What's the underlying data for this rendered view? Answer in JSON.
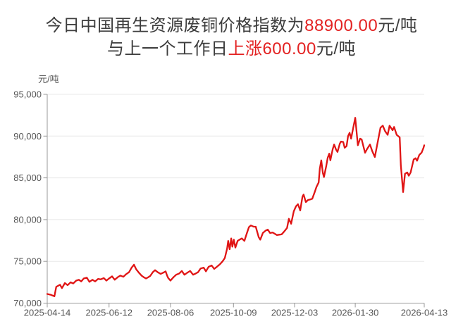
{
  "title": {
    "line1_prefix": "今日中国再生资源废铜价格指数为",
    "line1_value": "88900.00",
    "line1_suffix": "元/吨",
    "line2_prefix": "与上一个工作日",
    "line2_value": "上涨600.00",
    "line2_suffix": "元/吨"
  },
  "colors": {
    "accent_red": "#e32222",
    "line_red": "#e01414",
    "text_dark": "#3d3d3d",
    "axis_text": "#555555",
    "grid": "#e8e8e8",
    "axis_line": "#999999"
  },
  "chart_data": {
    "type": "line",
    "title": "",
    "unit_label": "元/吨",
    "xlabel": "",
    "ylabel": "元/吨",
    "ylim": [
      70000,
      95000
    ],
    "ytick_step": 5000,
    "ytick_labels": [
      "70,000",
      "75,000",
      "80,000",
      "85,000",
      "90,000",
      "95,000"
    ],
    "grid": "horizontal",
    "legend": "none",
    "xticks": [
      {
        "label": "2025-04-14",
        "t": 0.0
      },
      {
        "label": "2025-06-12",
        "t": 0.164
      },
      {
        "label": "2025-08-06",
        "t": 0.327
      },
      {
        "label": "2025-10-09",
        "t": 0.494
      },
      {
        "label": "2025-12-03",
        "t": 0.656
      },
      {
        "label": "2026-01-30",
        "t": 0.817
      },
      {
        "label": "2026-04-13",
        "t": 1.0
      }
    ],
    "series": [
      {
        "points": [
          [
            0.0,
            71100
          ],
          [
            0.009,
            71000
          ],
          [
            0.019,
            70820
          ],
          [
            0.024,
            71950
          ],
          [
            0.034,
            72200
          ],
          [
            0.039,
            71800
          ],
          [
            0.047,
            72400
          ],
          [
            0.054,
            72150
          ],
          [
            0.062,
            72500
          ],
          [
            0.069,
            72350
          ],
          [
            0.077,
            72700
          ],
          [
            0.084,
            72800
          ],
          [
            0.09,
            72600
          ],
          [
            0.097,
            72950
          ],
          [
            0.105,
            73050
          ],
          [
            0.112,
            72550
          ],
          [
            0.12,
            72800
          ],
          [
            0.127,
            72600
          ],
          [
            0.135,
            72900
          ],
          [
            0.142,
            72850
          ],
          [
            0.15,
            73000
          ],
          [
            0.157,
            72700
          ],
          [
            0.164,
            72950
          ],
          [
            0.172,
            73200
          ],
          [
            0.179,
            72800
          ],
          [
            0.187,
            73100
          ],
          [
            0.194,
            73300
          ],
          [
            0.202,
            73150
          ],
          [
            0.209,
            73450
          ],
          [
            0.217,
            73700
          ],
          [
            0.224,
            74250
          ],
          [
            0.23,
            74600
          ],
          [
            0.236,
            74050
          ],
          [
            0.243,
            73650
          ],
          [
            0.25,
            73300
          ],
          [
            0.256,
            73100
          ],
          [
            0.262,
            72950
          ],
          [
            0.268,
            73100
          ],
          [
            0.273,
            73250
          ],
          [
            0.28,
            73700
          ],
          [
            0.286,
            73950
          ],
          [
            0.293,
            73700
          ],
          [
            0.301,
            73500
          ],
          [
            0.308,
            73650
          ],
          [
            0.314,
            73800
          ],
          [
            0.318,
            73300
          ],
          [
            0.321,
            73000
          ],
          [
            0.327,
            72700
          ],
          [
            0.335,
            73100
          ],
          [
            0.342,
            73400
          ],
          [
            0.35,
            73550
          ],
          [
            0.357,
            73850
          ],
          [
            0.364,
            73400
          ],
          [
            0.372,
            73650
          ],
          [
            0.379,
            73850
          ],
          [
            0.387,
            73400
          ],
          [
            0.394,
            73550
          ],
          [
            0.4,
            73700
          ],
          [
            0.407,
            74150
          ],
          [
            0.415,
            74250
          ],
          [
            0.421,
            73800
          ],
          [
            0.428,
            74350
          ],
          [
            0.436,
            74500
          ],
          [
            0.443,
            74100
          ],
          [
            0.45,
            74350
          ],
          [
            0.458,
            74650
          ],
          [
            0.465,
            75000
          ],
          [
            0.471,
            75400
          ],
          [
            0.477,
            76500
          ],
          [
            0.48,
            77450
          ],
          [
            0.484,
            76450
          ],
          [
            0.488,
            77750
          ],
          [
            0.491,
            76750
          ],
          [
            0.495,
            77600
          ],
          [
            0.499,
            76650
          ],
          [
            0.505,
            77450
          ],
          [
            0.51,
            77600
          ],
          [
            0.516,
            77750
          ],
          [
            0.523,
            77450
          ],
          [
            0.529,
            78300
          ],
          [
            0.535,
            79100
          ],
          [
            0.54,
            79300
          ],
          [
            0.548,
            79150
          ],
          [
            0.553,
            79150
          ],
          [
            0.561,
            77900
          ],
          [
            0.565,
            77600
          ],
          [
            0.572,
            78400
          ],
          [
            0.58,
            78700
          ],
          [
            0.585,
            78800
          ],
          [
            0.591,
            78400
          ],
          [
            0.598,
            78450
          ],
          [
            0.604,
            78300
          ],
          [
            0.609,
            78150
          ],
          [
            0.617,
            78200
          ],
          [
            0.622,
            78250
          ],
          [
            0.628,
            78550
          ],
          [
            0.636,
            79000
          ],
          [
            0.641,
            80100
          ],
          [
            0.647,
            79500
          ],
          [
            0.654,
            81000
          ],
          [
            0.66,
            81600
          ],
          [
            0.665,
            81850
          ],
          [
            0.671,
            81100
          ],
          [
            0.677,
            82750
          ],
          [
            0.68,
            83000
          ],
          [
            0.686,
            82100
          ],
          [
            0.692,
            82350
          ],
          [
            0.697,
            82400
          ],
          [
            0.703,
            82500
          ],
          [
            0.71,
            83350
          ],
          [
            0.714,
            83900
          ],
          [
            0.72,
            84450
          ],
          [
            0.723,
            86100
          ],
          [
            0.727,
            87100
          ],
          [
            0.731,
            85600
          ],
          [
            0.734,
            85100
          ],
          [
            0.74,
            86400
          ],
          [
            0.744,
            87400
          ],
          [
            0.748,
            87900
          ],
          [
            0.751,
            87100
          ],
          [
            0.757,
            88400
          ],
          [
            0.761,
            89000
          ],
          [
            0.766,
            88400
          ],
          [
            0.77,
            88100
          ],
          [
            0.776,
            89100
          ],
          [
            0.779,
            89350
          ],
          [
            0.785,
            89300
          ],
          [
            0.789,
            88600
          ],
          [
            0.794,
            88800
          ],
          [
            0.798,
            90000
          ],
          [
            0.802,
            90400
          ],
          [
            0.806,
            89700
          ],
          [
            0.811,
            90850
          ],
          [
            0.817,
            92200
          ],
          [
            0.824,
            88900
          ],
          [
            0.83,
            89700
          ],
          [
            0.834,
            89600
          ],
          [
            0.843,
            88000
          ],
          [
            0.849,
            88500
          ],
          [
            0.856,
            89000
          ],
          [
            0.862,
            88200
          ],
          [
            0.869,
            87500
          ],
          [
            0.875,
            88900
          ],
          [
            0.884,
            91000
          ],
          [
            0.89,
            91250
          ],
          [
            0.896,
            90600
          ],
          [
            0.903,
            90150
          ],
          [
            0.908,
            91250
          ],
          [
            0.916,
            90700
          ],
          [
            0.92,
            91100
          ],
          [
            0.927,
            90150
          ],
          [
            0.935,
            89850
          ],
          [
            0.938,
            86500
          ],
          [
            0.944,
            83300
          ],
          [
            0.949,
            85500
          ],
          [
            0.955,
            85650
          ],
          [
            0.959,
            85250
          ],
          [
            0.964,
            85650
          ],
          [
            0.972,
            87200
          ],
          [
            0.977,
            87350
          ],
          [
            0.981,
            87050
          ],
          [
            0.987,
            87750
          ],
          [
            0.993,
            88030
          ],
          [
            0.998,
            88590
          ],
          [
            1.0,
            88900
          ]
        ]
      }
    ]
  }
}
